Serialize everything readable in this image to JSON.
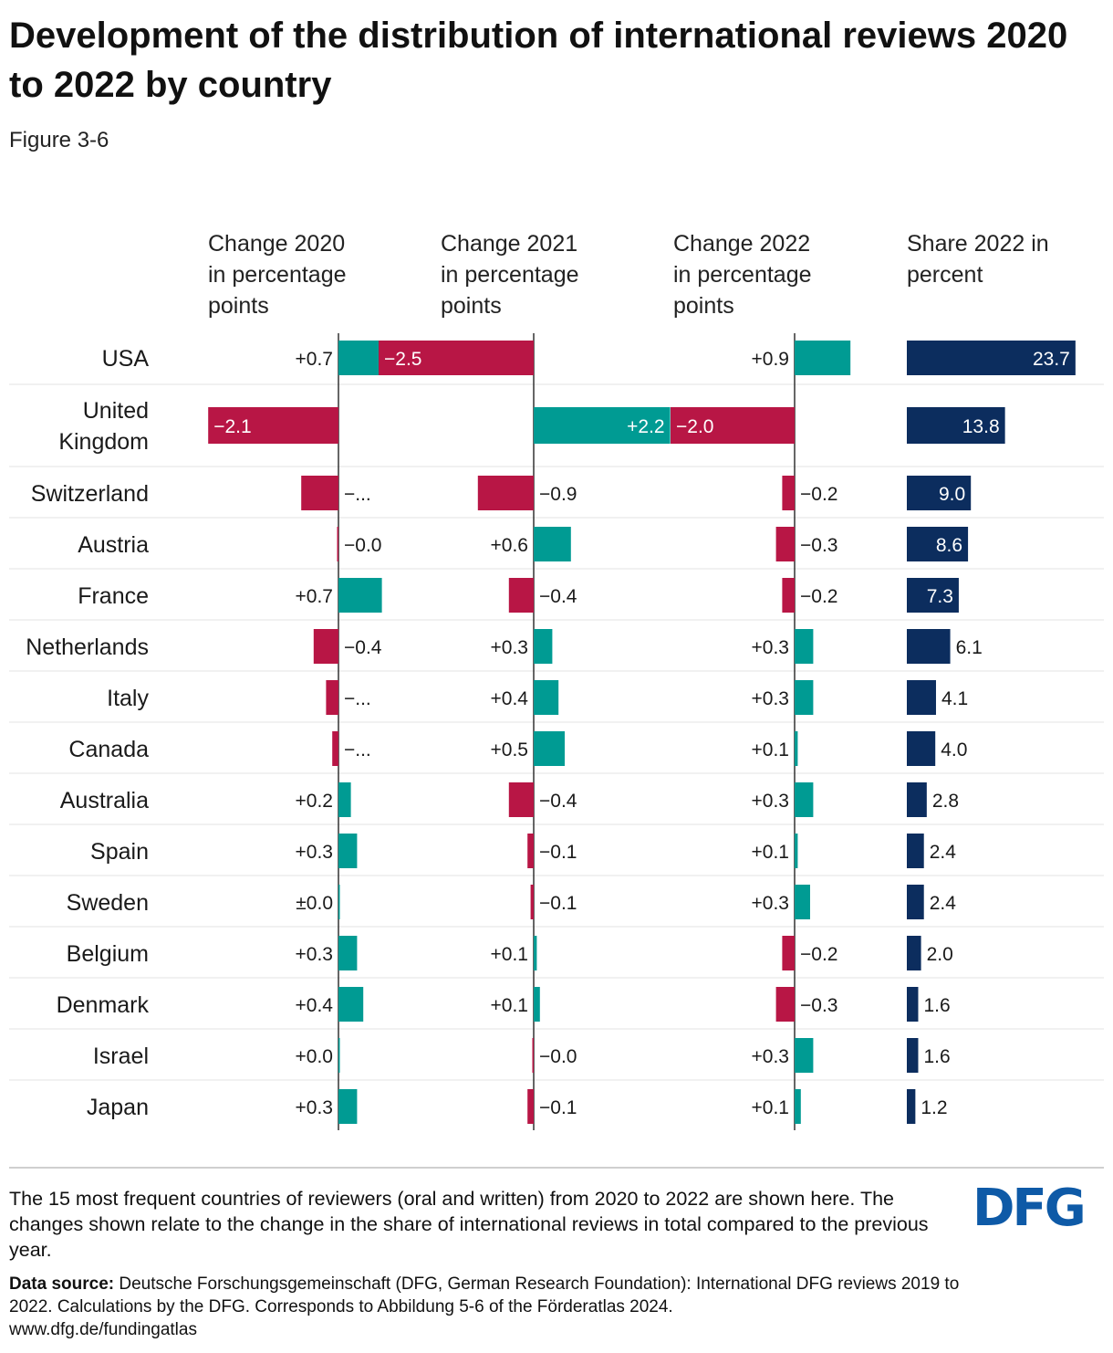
{
  "title": "Development of the distribution of international reviews 2020 to 2022 by country",
  "subtitle": "Figure 3-6",
  "columns": {
    "c2020": "Change 2020\nin percentage\npoints",
    "c2021": "Change 2021\nin percentage\npoints",
    "c2022": "Change 2022\nin percentage\npoints",
    "share": "Share 2022 in\npercent"
  },
  "colors": {
    "positive": "#009b93",
    "negative": "#b81645",
    "share": "#0c2d5e",
    "axis": "#333333",
    "gridline": "#e3e3e3"
  },
  "chart_data": {
    "type": "bar",
    "orientation": "horizontal",
    "categories": [
      "USA",
      "United Kingdom",
      "Switzerland",
      "Austria",
      "France",
      "Netherlands",
      "Italy",
      "Canada",
      "Australia",
      "Spain",
      "Sweden",
      "Belgium",
      "Denmark",
      "Israel",
      "Japan"
    ],
    "series": [
      {
        "name": "Change 2020 in percentage points",
        "values": [
          0.7,
          -2.1,
          -0.6,
          -0.02,
          0.7,
          -0.4,
          -0.2,
          -0.1,
          0.2,
          0.3,
          0.0,
          0.3,
          0.4,
          0.02,
          0.3
        ],
        "labels": [
          "+0.7",
          "−2.1",
          "−...",
          "−0.0",
          "+0.7",
          "−0.4",
          "−...",
          "−...",
          "+0.2",
          "+0.3",
          "±0.0",
          "+0.3",
          "+0.4",
          "+0.0",
          "+0.3"
        ]
      },
      {
        "name": "Change 2021 in percentage points",
        "values": [
          -2.5,
          2.2,
          -0.9,
          0.6,
          -0.4,
          0.3,
          0.4,
          0.5,
          -0.4,
          -0.1,
          -0.05,
          0.05,
          0.1,
          -0.02,
          -0.1
        ],
        "labels": [
          "−2.5",
          "+2.2",
          "−0.9",
          "+0.6",
          "−0.4",
          "+0.3",
          "+0.4",
          "+0.5",
          "−0.4",
          "−0.1",
          "−0.1",
          "+0.1",
          "+0.1",
          "−0.0",
          "−0.1"
        ]
      },
      {
        "name": "Change 2022 in percentage points",
        "values": [
          0.9,
          -2.0,
          -0.2,
          -0.3,
          -0.2,
          0.3,
          0.3,
          0.05,
          0.3,
          0.05,
          0.25,
          -0.2,
          -0.3,
          0.3,
          0.1
        ],
        "labels": [
          "+0.9",
          "−2.0",
          "−0.2",
          "−0.3",
          "−0.2",
          "+0.3",
          "+0.3",
          "+0.1",
          "+0.3",
          "+0.1",
          "+0.3",
          "−0.2",
          "−0.3",
          "+0.3",
          "+0.1"
        ]
      },
      {
        "name": "Share 2022 in percent",
        "values": [
          23.7,
          13.8,
          9.0,
          8.6,
          7.3,
          6.1,
          4.1,
          4.0,
          2.8,
          2.4,
          2.4,
          2.0,
          1.6,
          1.6,
          1.2
        ],
        "labels": [
          "23.7",
          "13.8",
          "9.0",
          "8.6",
          "7.3",
          "6.1",
          "4.1",
          "4.0",
          "2.8",
          "2.4",
          "2.4",
          "2.0",
          "1.6",
          "1.6",
          "1.2"
        ]
      }
    ],
    "xlim_change": [
      -2.5,
      2.5
    ],
    "xlim_share": [
      0,
      25
    ]
  },
  "footnote": "The 15 most frequent countries of reviewers (oral and written) from 2020 to 2022 are shown here. The changes shown relate to the change in the share of international reviews in total compared to the previous year.",
  "source_label": "Data source:",
  "source_text": "Deutsche Forschungsgemeinschaft (DFG, German Research Foundation): International DFG reviews 2019 to 2022. Calculations by the DFG. Corresponds to Abbildung 5-6 of the Förderatlas 2024.",
  "source_url": "www.dfg.de/fundingatlas",
  "logo": "DFG"
}
